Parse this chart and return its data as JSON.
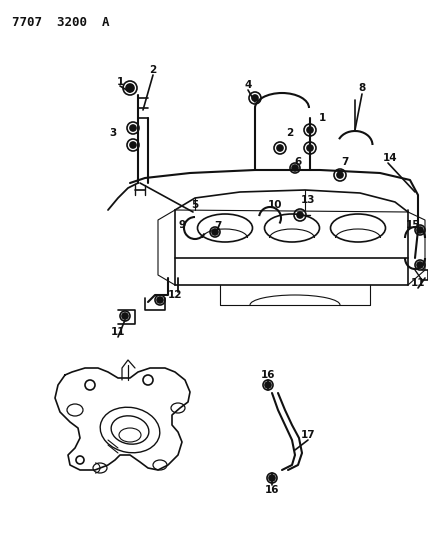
{
  "diagram_id": "7707 3200 A",
  "background_color": "#ffffff",
  "line_color": "#111111",
  "title_text": "7707  3200  A",
  "figsize": [
    4.28,
    5.33
  ],
  "dpi": 100
}
